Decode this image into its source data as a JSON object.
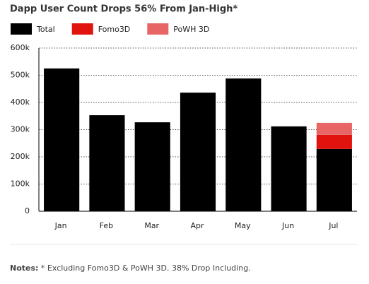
{
  "chart_data": {
    "type": "stacked_bar",
    "title": "Dapp User Count Drops 56% From Jan-High*",
    "categories": [
      "Jan",
      "Feb",
      "Mar",
      "Apr",
      "May",
      "Jun",
      "Jul"
    ],
    "series": [
      {
        "name": "Total",
        "color": "#000000",
        "values": [
          525000,
          353000,
          327000,
          436000,
          488000,
          312000,
          229000
        ]
      },
      {
        "name": "Fomo3D",
        "color": "#e0130e",
        "values": [
          null,
          null,
          null,
          null,
          null,
          null,
          52000
        ]
      },
      {
        "name": "PoWH 3D",
        "color": "#e86565",
        "values": [
          null,
          null,
          null,
          null,
          null,
          null,
          44000
        ]
      }
    ],
    "ylim": [
      0,
      600000
    ],
    "yticks": [
      0,
      {
        "value": 100000,
        "label": "100k"
      },
      {
        "value": 200000,
        "label": "200k"
      },
      {
        "value": 300000,
        "label": "300k"
      },
      {
        "value": 400000,
        "label": "400k"
      },
      {
        "value": 500000,
        "label": "500k"
      },
      {
        "value": 600000,
        "label": "600k"
      }
    ],
    "grid": true,
    "legend": "top-left",
    "notes_label": "Notes:",
    "notes": " * Excluding Fomo3D & PoWH 3D. 38% Drop Including."
  }
}
